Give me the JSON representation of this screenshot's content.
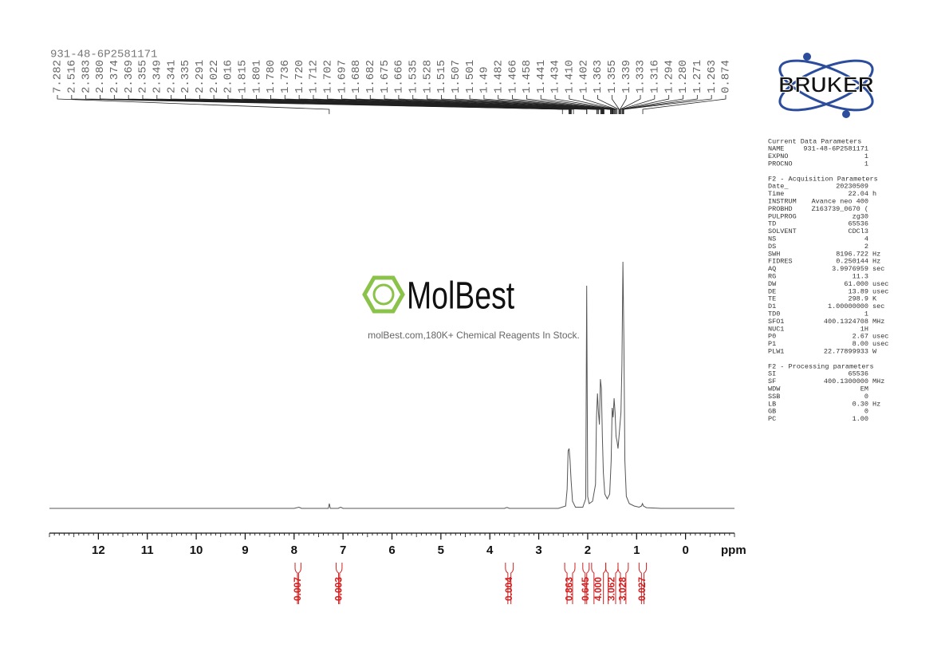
{
  "chart_data": {
    "type": "nmr",
    "title": "931-48-6P2581171",
    "x_label": "ppm",
    "xlim": [
      13,
      -1
    ],
    "xticks": [
      12,
      11,
      10,
      9,
      8,
      7,
      6,
      5,
      4,
      3,
      2,
      1,
      0
    ],
    "minor_tick_interval": 0.1,
    "ylim": [
      -1,
      110
    ],
    "color": "#555555",
    "x": [
      13,
      8.0,
      7.9,
      7.85,
      7.3,
      7.28,
      7.26,
      7.1,
      7.05,
      7.0,
      3.7,
      3.65,
      3.6,
      2.6,
      2.45,
      2.42,
      2.4,
      2.38,
      2.36,
      2.34,
      2.31,
      2.25,
      2.1,
      2.04,
      2.02,
      2.0,
      1.97,
      1.9,
      1.84,
      1.82,
      1.8,
      1.78,
      1.76,
      1.74,
      1.72,
      1.7,
      1.68,
      1.65,
      1.6,
      1.55,
      1.52,
      1.5,
      1.48,
      1.46,
      1.44,
      1.42,
      1.4,
      1.38,
      1.36,
      1.34,
      1.32,
      1.3,
      1.28,
      1.26,
      1.24,
      1.21,
      1.15,
      1.05,
      0.95,
      0.9,
      0.88,
      0.86,
      0.8,
      0.5,
      0,
      -1
    ],
    "y": [
      0,
      0,
      0.5,
      0,
      0,
      2,
      0,
      0,
      0.5,
      0,
      0,
      0.4,
      0,
      0,
      1,
      8,
      24,
      25,
      20,
      12,
      3,
      0.5,
      0.5,
      4,
      93,
      5,
      2,
      3,
      10,
      38,
      48,
      40,
      35,
      54,
      50,
      30,
      15,
      6,
      4,
      6,
      20,
      42,
      38,
      46,
      40,
      30,
      28,
      25,
      30,
      35,
      40,
      60,
      103,
      70,
      20,
      5,
      2,
      1,
      0.5,
      1,
      2,
      1,
      0.3,
      0,
      0,
      0
    ],
    "peak_labels": [
      7.282,
      2.516,
      2.383,
      {
        "value": 2.38,
        "label": "2.380"
      },
      2.374,
      2.369,
      2.355,
      2.349,
      2.341,
      2.335,
      2.291,
      2.022,
      2.016,
      1.815,
      1.801,
      {
        "value": 1.78,
        "label": "1.780"
      },
      1.736,
      {
        "value": 1.72,
        "label": "1.720"
      },
      1.712,
      1.702,
      1.697,
      1.688,
      1.682,
      1.675,
      1.666,
      1.535,
      1.528,
      1.515,
      1.507,
      1.501,
      1.49,
      1.482,
      1.466,
      1.458,
      1.441,
      1.434,
      {
        "value": 1.41,
        "label": "1.410"
      },
      1.402,
      1.363,
      1.355,
      1.339,
      1.333,
      1.316,
      1.294,
      {
        "value": 1.28,
        "label": "1.280"
      },
      1.271,
      1.263,
      0.874
    ],
    "integrals": {
      "color": "#d42020",
      "ranges": [
        [
          7.98,
          7.86
        ],
        [
          7.14,
          7.02
        ],
        [
          3.68,
          3.52
        ],
        [
          2.47,
          2.26
        ],
        [
          2.1,
          1.97
        ],
        [
          1.92,
          1.63
        ],
        [
          1.63,
          1.38
        ],
        [
          1.38,
          1.17
        ],
        [
          0.95,
          0.8
        ]
      ],
      "values": [
        0.007,
        0.003,
        0.004,
        0.863,
        0.645,
        4,
        3.062,
        3.028,
        0.027
      ],
      "value_labels": [
        "0.007",
        "0.003",
        "0.004",
        "0.863",
        "0.645",
        "4.000",
        "3.062",
        "3.028",
        "0.027"
      ]
    }
  },
  "logos": {
    "bruker": "BRUKER",
    "molbest": "MolBest",
    "molbest_tagline": "molBest.com,180K+ Chemical Reagents In Stock."
  },
  "parameters": {
    "sections": [
      {
        "title": "Current Data Parameters",
        "rows": [
          {
            "name": "NAME",
            "value": "931-48-6P2581171"
          },
          {
            "name": "EXPNO",
            "value": "1"
          },
          {
            "name": "PROCNO",
            "value": "1"
          }
        ]
      },
      {
        "title": "F2 - Acquisition Parameters",
        "rows": [
          {
            "name": "Date_",
            "value": "20230509"
          },
          {
            "name": "Time",
            "value": "22.04",
            "unit": "h"
          },
          {
            "name": "INSTRUM",
            "value": "Avance neo 400"
          },
          {
            "name": "PROBHD",
            "value": "Z163739_0670 ("
          },
          {
            "name": "PULPROG",
            "value": "zg30"
          },
          {
            "name": "TD",
            "value": "65536"
          },
          {
            "name": "SOLVENT",
            "value": "CDCl3"
          },
          {
            "name": "NS",
            "value": "4"
          },
          {
            "name": "DS",
            "value": "2"
          },
          {
            "name": "SWH",
            "value": "8196.722",
            "unit": "Hz"
          },
          {
            "name": "FIDRES",
            "value": "0.250144",
            "unit": "Hz"
          },
          {
            "name": "AQ",
            "value": "3.9976959",
            "unit": "sec"
          },
          {
            "name": "RG",
            "value": "11.3"
          },
          {
            "name": "DW",
            "value": "61.000",
            "unit": "usec"
          },
          {
            "name": "DE",
            "value": "13.89",
            "unit": "usec"
          },
          {
            "name": "TE",
            "value": "298.9",
            "unit": "K"
          },
          {
            "name": "D1",
            "value": "1.00000000",
            "unit": "sec"
          },
          {
            "name": "TD0",
            "value": "1"
          },
          {
            "name": "SFO1",
            "value": "400.1324708",
            "unit": "MHz"
          },
          {
            "name": "NUC1",
            "value": "1H"
          },
          {
            "name": "P0",
            "value": "2.67",
            "unit": "usec"
          },
          {
            "name": "P1",
            "value": "8.00",
            "unit": "usec"
          },
          {
            "name": "PLW1",
            "value": "22.77899933",
            "unit": "W"
          }
        ]
      },
      {
        "title": "F2 - Processing parameters",
        "rows": [
          {
            "name": "SI",
            "value": "65536"
          },
          {
            "name": "SF",
            "value": "400.1300000",
            "unit": "MHz"
          },
          {
            "name": "WDW",
            "value": "EM"
          },
          {
            "name": "SSB",
            "value": "0"
          },
          {
            "name": "LB",
            "value": "0.30",
            "unit": "Hz"
          },
          {
            "name": "GB",
            "value": "0"
          },
          {
            "name": "PC",
            "value": "1.00"
          }
        ]
      }
    ]
  }
}
